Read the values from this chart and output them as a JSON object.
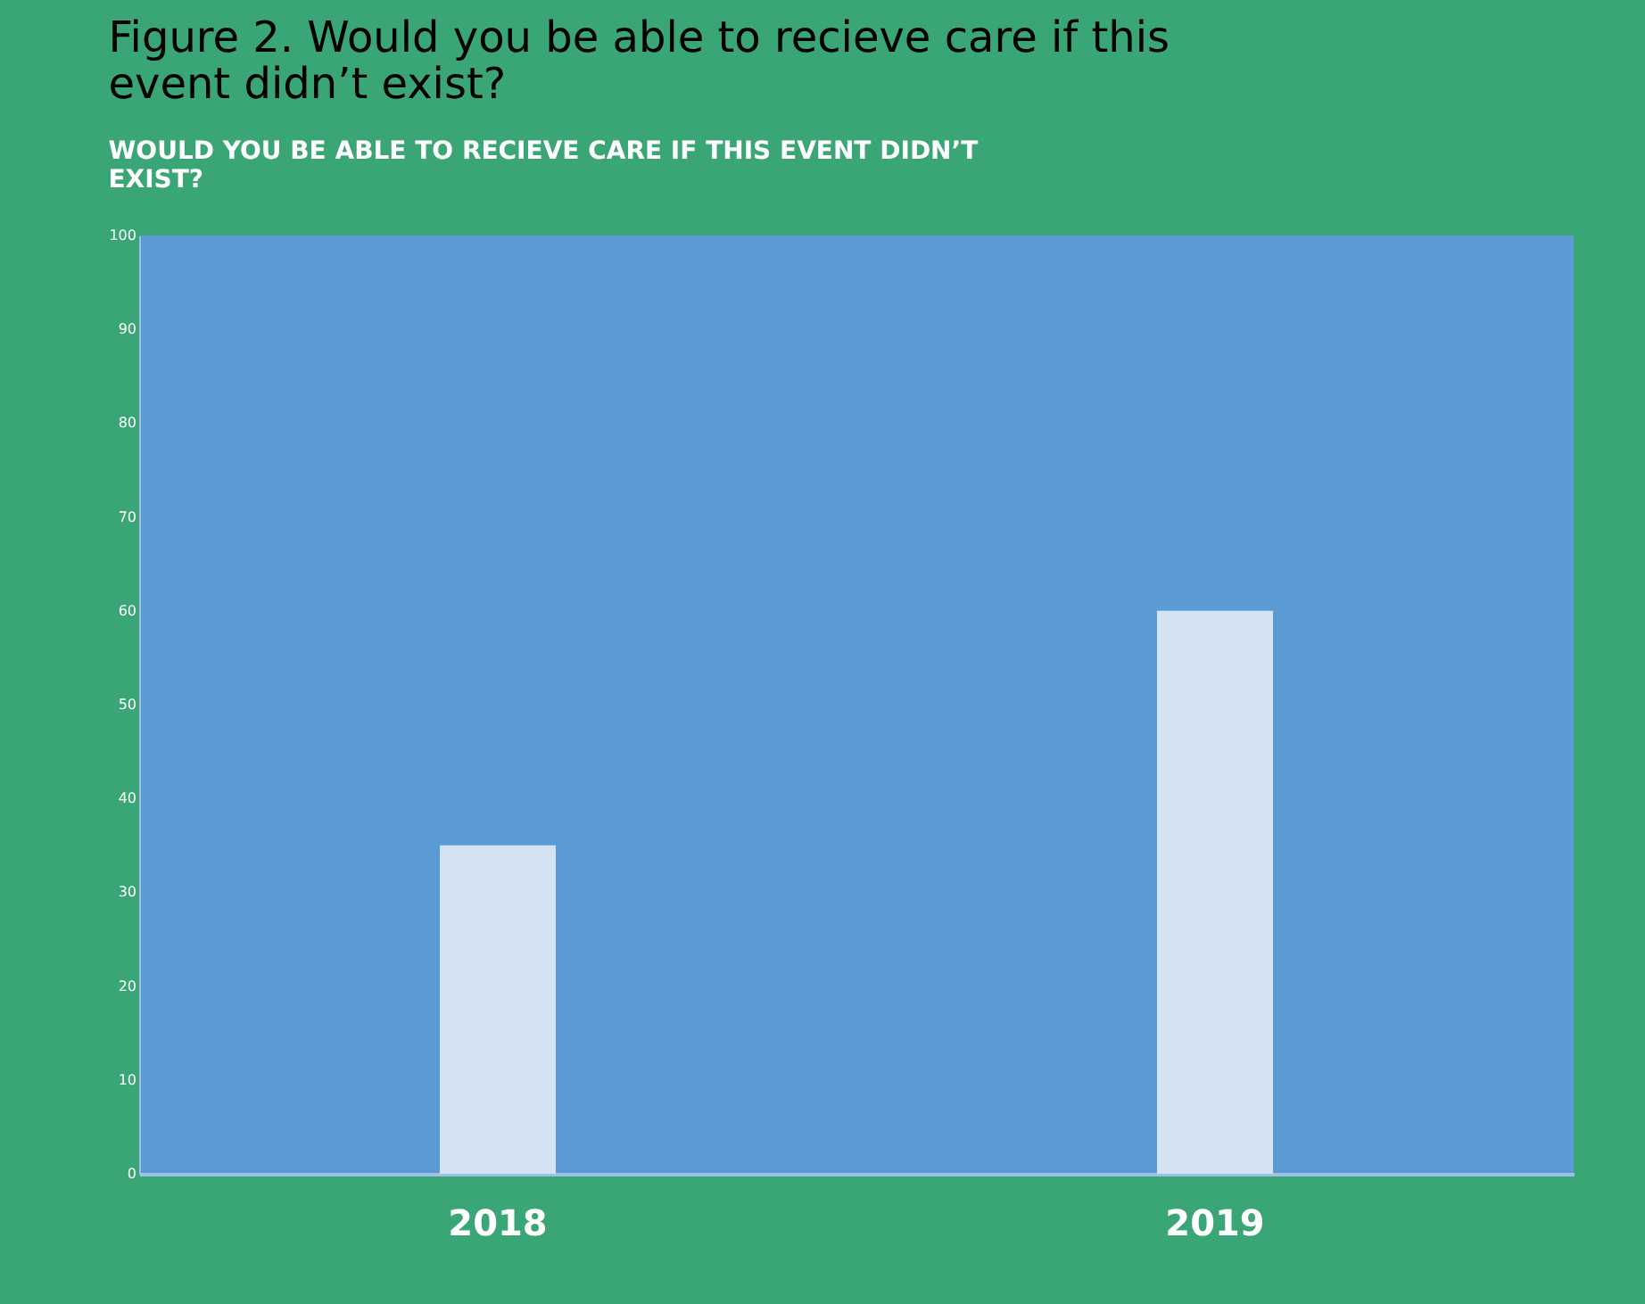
{
  "chart_data": {
    "type": "bar",
    "title": "Figure 2. Would you be able to recieve care if this event didn’t exist?",
    "subtitle": "WOULD YOU BE ABLE TO RECIEVE CARE IF THIS EVENT DIDN’T EXIST?",
    "categories": [
      "2018",
      "2019"
    ],
    "values": [
      35,
      60
    ],
    "color": "#d3e3f4",
    "ylim": [
      0,
      100
    ],
    "yticks": [
      0,
      10,
      20,
      30,
      40,
      50,
      60,
      70,
      80,
      90,
      100
    ]
  }
}
